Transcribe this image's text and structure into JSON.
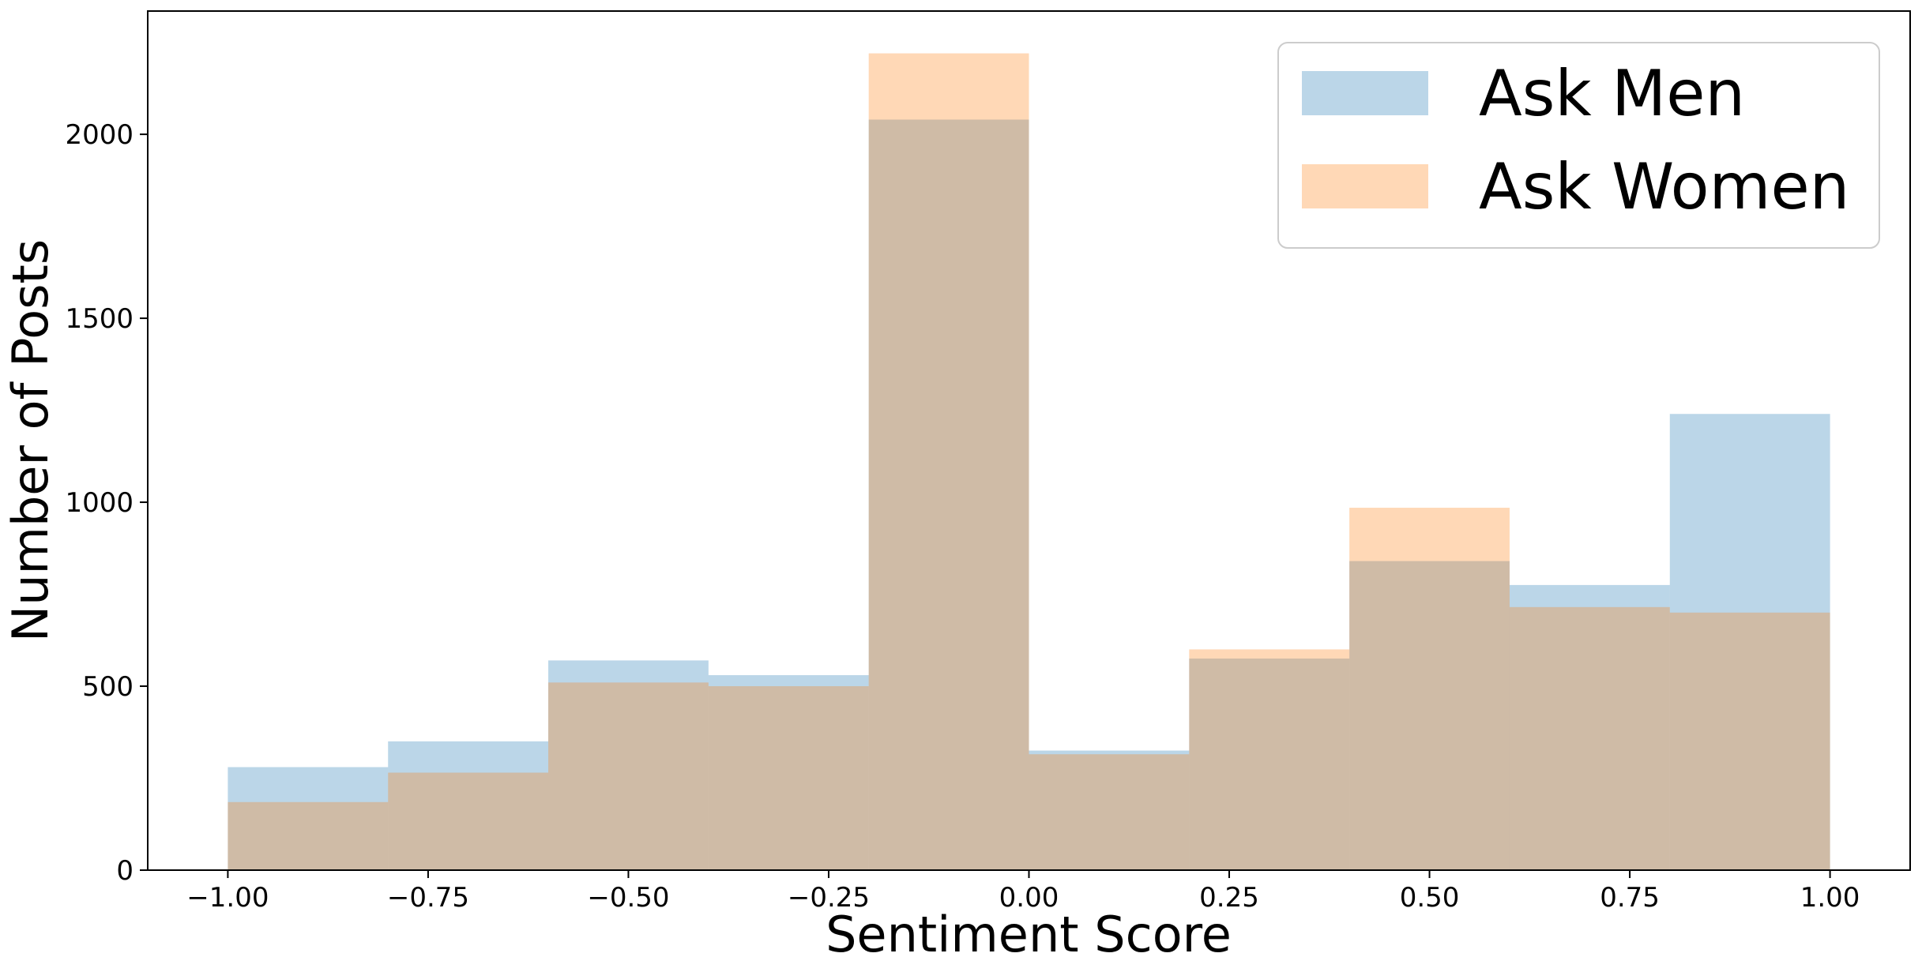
{
  "chart_data": {
    "type": "bar",
    "subtype": "overlapping-histogram",
    "bin_edges": [
      -1.0,
      -0.8,
      -0.6,
      -0.4,
      -0.2,
      0.0,
      0.2,
      0.4,
      0.6,
      0.8,
      1.0
    ],
    "series": [
      {
        "name": "Ask Men",
        "color": "#1f77b4",
        "opacity": 0.3,
        "values": [
          280,
          350,
          570,
          530,
          2040,
          325,
          575,
          840,
          775,
          1240
        ]
      },
      {
        "name": "Ask Women",
        "color": "#ff7f0e",
        "opacity": 0.3,
        "values": [
          185,
          265,
          510,
          500,
          2220,
          315,
          600,
          985,
          715,
          700
        ]
      }
    ],
    "xlabel": "Sentiment Score",
    "ylabel": "Number of Posts",
    "xlim": [
      -1.1,
      1.1
    ],
    "ylim": [
      0,
      2335
    ],
    "xticks": [
      -1.0,
      -0.75,
      -0.5,
      -0.25,
      0.0,
      0.25,
      0.5,
      0.75,
      1.0
    ],
    "xtick_labels": [
      "−1.00",
      "−0.75",
      "−0.50",
      "−0.25",
      "0.00",
      "0.25",
      "0.50",
      "0.75",
      "1.00"
    ],
    "yticks": [
      0,
      500,
      1000,
      1500,
      2000
    ],
    "ytick_labels": [
      "0",
      "500",
      "1000",
      "1500",
      "2000"
    ],
    "grid": false,
    "legend": {
      "placement": "top-right"
    }
  }
}
